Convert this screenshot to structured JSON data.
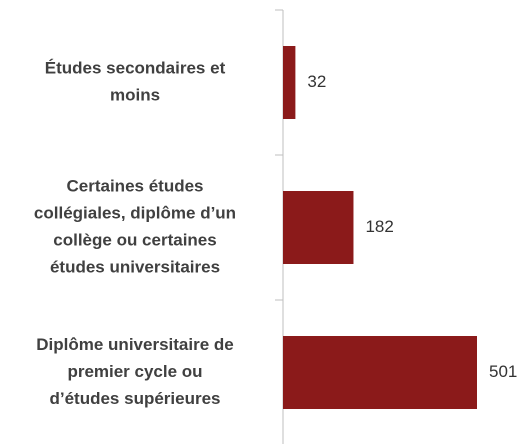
{
  "chart_data": {
    "type": "bar",
    "orientation": "horizontal",
    "categories": [
      [
        "Études secondaires et",
        "moins"
      ],
      [
        "Certaines études",
        "collégiales, diplôme d’un",
        "collège ou certaines",
        "études universitaires"
      ],
      [
        "Diplôme universitaire de",
        "premier cycle ou",
        "d’études supérieures"
      ]
    ],
    "values": [
      32,
      182,
      501
    ],
    "color": "#8b1a1a"
  }
}
